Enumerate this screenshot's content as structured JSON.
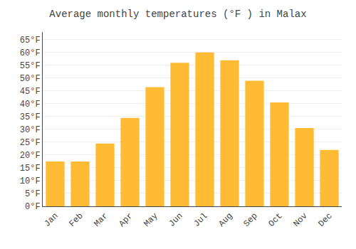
{
  "chart_data": {
    "type": "bar",
    "title": "Average monthly temperatures (°F ) in Malax",
    "categories": [
      "Jan",
      "Feb",
      "Mar",
      "Apr",
      "May",
      "Jun",
      "Jul",
      "Aug",
      "Sep",
      "Oct",
      "Nov",
      "Dec"
    ],
    "values": [
      17.5,
      17.5,
      24.5,
      34.5,
      46.5,
      56.0,
      60.0,
      57.0,
      49.0,
      40.5,
      30.5,
      22.0
    ],
    "color": "#FFBB33",
    "ylim": [
      0,
      68
    ],
    "yticks": [
      {
        "value": 0,
        "label": "0°F"
      },
      {
        "value": 5,
        "label": "5°F"
      },
      {
        "value": 10,
        "label": "10°F"
      },
      {
        "value": 15,
        "label": "15°F"
      },
      {
        "value": 20,
        "label": "20°F"
      },
      {
        "value": 25,
        "label": "25°F"
      },
      {
        "value": 30,
        "label": "30°F"
      },
      {
        "value": 35,
        "label": "35°F"
      },
      {
        "value": 40,
        "label": "40°F"
      },
      {
        "value": 45,
        "label": "45°F"
      },
      {
        "value": 50,
        "label": "50°F"
      },
      {
        "value": 55,
        "label": "55°F"
      },
      {
        "value": 60,
        "label": "60°F"
      },
      {
        "value": 65,
        "label": "65°F"
      }
    ],
    "grid": true
  }
}
